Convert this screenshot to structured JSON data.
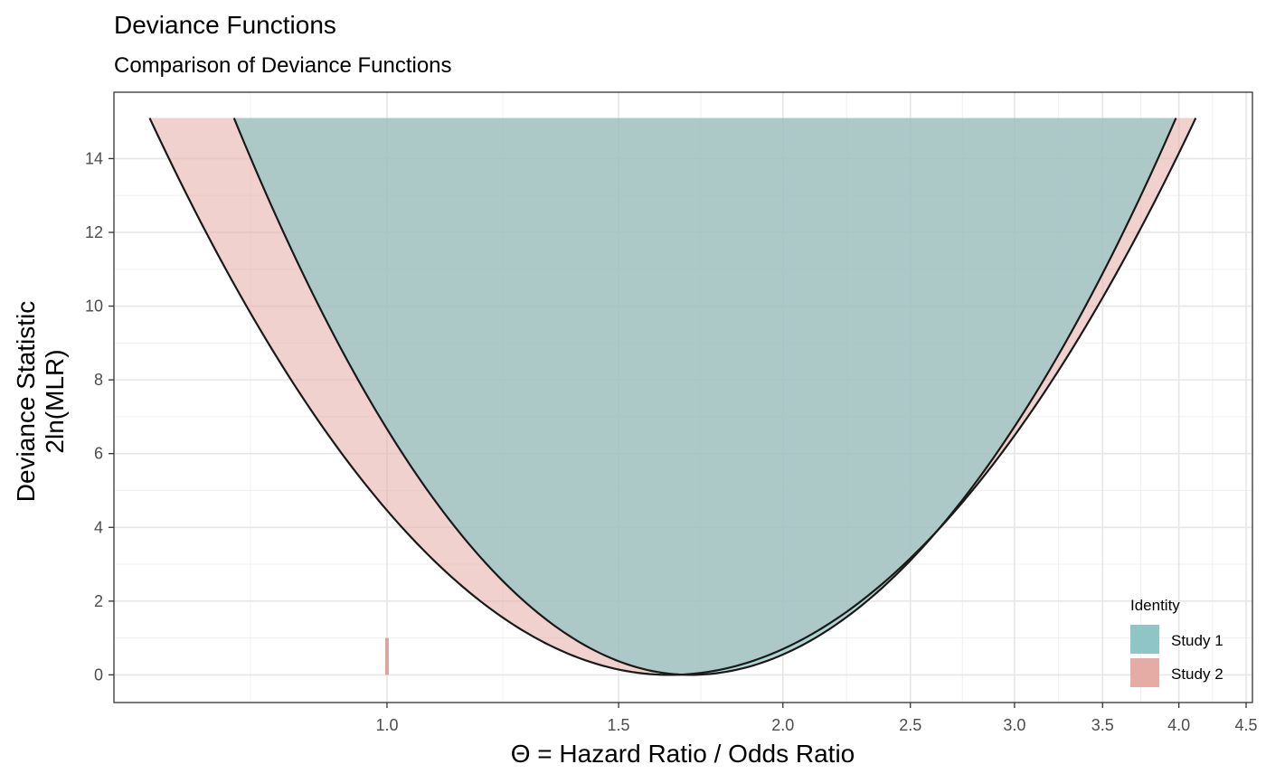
{
  "chart_data": {
    "type": "area",
    "title": "Deviance Functions",
    "subtitle": "Comparison of Deviance Functions",
    "xlabel": "Θ = Hazard Ratio / Odds Ratio",
    "ylabel_lines": [
      "Deviance Statistic",
      "2ln(MLR)"
    ],
    "x_scale": "log",
    "xlim": [
      0.62,
      4.55
    ],
    "ylim": [
      -0.75,
      15.8
    ],
    "x_ticks": [
      {
        "value": 1.0,
        "label": "1.0"
      },
      {
        "value": 1.5,
        "label": "1.5"
      },
      {
        "value": 2.0,
        "label": "2.0"
      },
      {
        "value": 2.5,
        "label": "2.5"
      },
      {
        "value": 3.0,
        "label": "3.0"
      },
      {
        "value": 3.5,
        "label": "3.5"
      },
      {
        "value": 4.0,
        "label": "4.0"
      },
      {
        "value": 4.5,
        "label": "4.5"
      }
    ],
    "y_ticks": [
      0,
      2,
      4,
      6,
      8,
      10,
      12,
      14
    ],
    "grid": true,
    "cap": 15.1,
    "legend": {
      "title": "Identity",
      "position": "bottom-right",
      "entries": [
        {
          "label": "Study 1",
          "color": "#8fc5c4"
        },
        {
          "label": "Study 2",
          "color": "#e5aca6"
        }
      ]
    },
    "series": [
      {
        "name": "Study 1",
        "color": "#8fc5c4",
        "fill_opacity": 0.7,
        "center": 1.7,
        "x_at_cap": [
          0.765,
          3.98
        ]
      },
      {
        "name": "Study 2",
        "color": "#e5aca6",
        "fill_opacity": 0.55,
        "center": 1.64,
        "x_at_cap": [
          0.66,
          4.12
        ]
      }
    ],
    "null_marker": {
      "x": 1.0,
      "y_top": 1.0,
      "color": "#d9a6a1"
    }
  }
}
